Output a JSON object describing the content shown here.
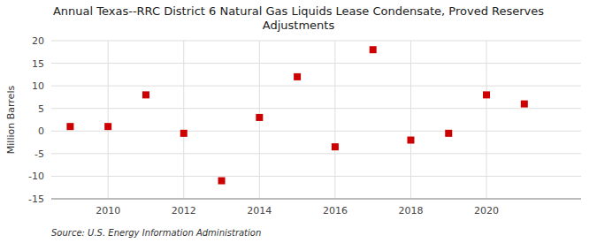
{
  "chart_data": {
    "type": "scatter",
    "title": "Annual Texas--RRC District 6 Natural Gas Liquids Lease Condensate, Proved Reserves\nAdjustments",
    "ylabel": "Million Barrels",
    "source": "Source: U.S. Energy Information Administration",
    "x": [
      2009,
      2010,
      2011,
      2012,
      2013,
      2014,
      2015,
      2016,
      2017,
      2018,
      2019,
      2020,
      2021
    ],
    "values": [
      1.0,
      1.0,
      8.0,
      -0.5,
      -11.0,
      3.0,
      12.0,
      -3.5,
      18.0,
      -2.0,
      -0.5,
      8.0,
      6.0
    ],
    "color": "#cc0000",
    "marker": "square",
    "xlim": [
      2008.5,
      2022.5
    ],
    "xticks": [
      2010,
      2012,
      2014,
      2016,
      2018,
      2020
    ],
    "ylim": [
      -15,
      20
    ],
    "yticks": [
      -15,
      -10,
      -5,
      0,
      5,
      10,
      15,
      20
    ],
    "grid": true
  }
}
